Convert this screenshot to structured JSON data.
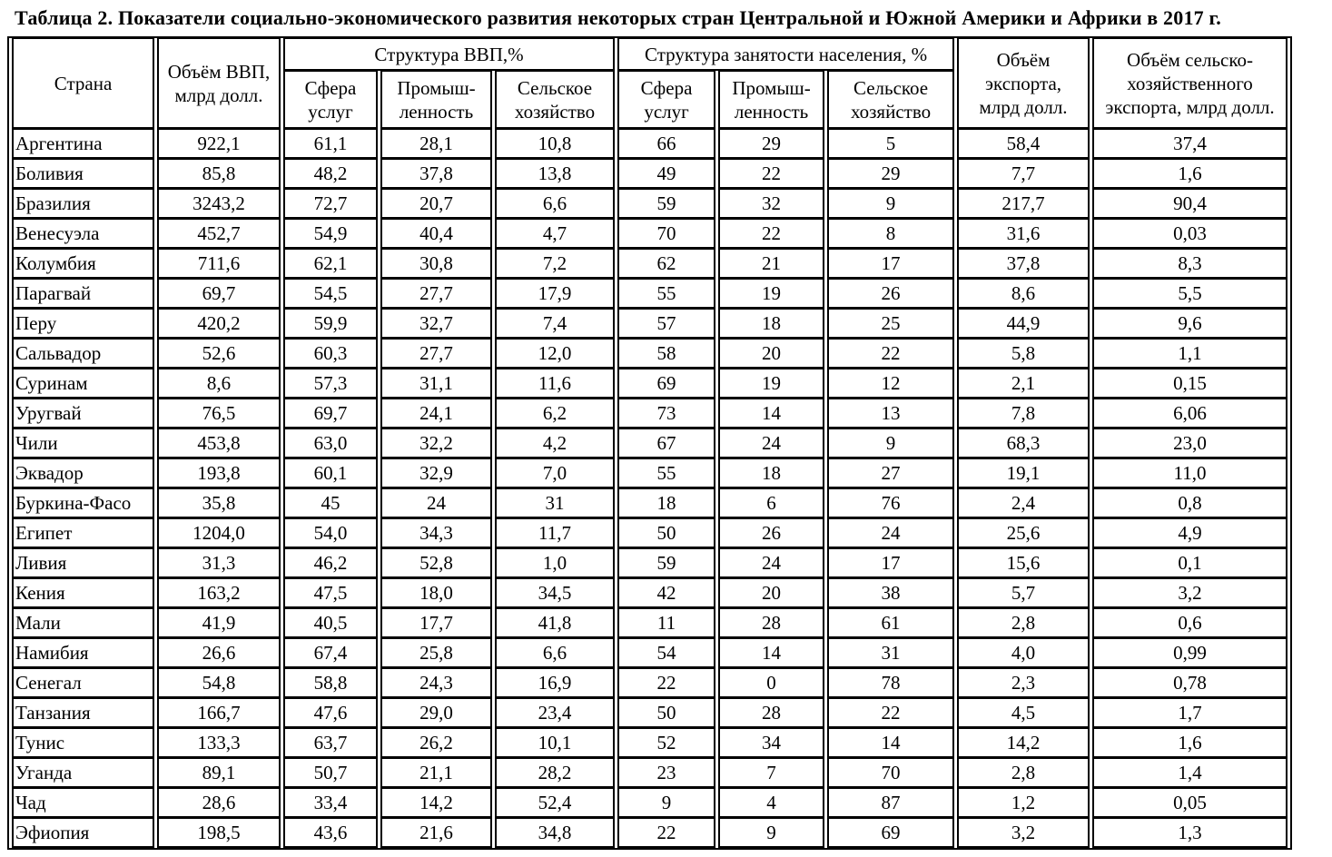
{
  "title": "Таблица 2. Показатели социально-экономического развития некоторых стран Центральной и Южной Америки и Африки в 2017 г.",
  "colors": {
    "text": "#000000",
    "background": "#ffffff",
    "border": "#000000"
  },
  "table": {
    "headers": {
      "country": "Страна",
      "gdp": "Объём ВВП,\nмлрд долл.",
      "gdp_structure_group": "Структура ВВП,%",
      "employment_structure_group": "Структура занятости населения, %",
      "sub_services": "Сфера\nуслуг",
      "sub_industry": "Промыш-\nленность",
      "sub_agriculture": "Сельское\nхозяйство",
      "export": "Объём\nэкспорта,\nмлрд долл.",
      "agri_export": "Объём сельско-\nхозяйственного\nэкспорта, млрд долл."
    },
    "columns_meaning": [
      "country",
      "gdp_bln_usd",
      "gdp_services_pct",
      "gdp_industry_pct",
      "gdp_agriculture_pct",
      "employment_services_pct",
      "employment_industry_pct",
      "employment_agriculture_pct",
      "export_bln_usd",
      "agricultural_export_bln_usd"
    ],
    "rows": [
      [
        "Аргентина",
        "922,1",
        "61,1",
        "28,1",
        "10,8",
        "66",
        "29",
        "5",
        "58,4",
        "37,4"
      ],
      [
        "Боливия",
        "85,8",
        "48,2",
        "37,8",
        "13,8",
        "49",
        "22",
        "29",
        "7,7",
        "1,6"
      ],
      [
        "Бразилия",
        "3243,2",
        "72,7",
        "20,7",
        "6,6",
        "59",
        "32",
        "9",
        "217,7",
        "90,4"
      ],
      [
        "Венесуэла",
        "452,7",
        "54,9",
        "40,4",
        "4,7",
        "70",
        "22",
        "8",
        "31,6",
        "0,03"
      ],
      [
        "Колумбия",
        "711,6",
        "62,1",
        "30,8",
        "7,2",
        "62",
        "21",
        "17",
        "37,8",
        "8,3"
      ],
      [
        "Парагвай",
        "69,7",
        "54,5",
        "27,7",
        "17,9",
        "55",
        "19",
        "26",
        "8,6",
        "5,5"
      ],
      [
        "Перу",
        "420,2",
        "59,9",
        "32,7",
        "7,4",
        "57",
        "18",
        "25",
        "44,9",
        "9,6"
      ],
      [
        "Сальвадор",
        "52,6",
        "60,3",
        "27,7",
        "12,0",
        "58",
        "20",
        "22",
        "5,8",
        "1,1"
      ],
      [
        "Суринам",
        "8,6",
        "57,3",
        "31,1",
        "11,6",
        "69",
        "19",
        "12",
        "2,1",
        "0,15"
      ],
      [
        "Уругвай",
        "76,5",
        "69,7",
        "24,1",
        "6,2",
        "73",
        "14",
        "13",
        "7,8",
        "6,06"
      ],
      [
        "Чили",
        "453,8",
        "63,0",
        "32,2",
        "4,2",
        "67",
        "24",
        "9",
        "68,3",
        "23,0"
      ],
      [
        "Эквадор",
        "193,8",
        "60,1",
        "32,9",
        "7,0",
        "55",
        "18",
        "27",
        "19,1",
        "11,0"
      ],
      [
        "Буркина-Фасо",
        "35,8",
        "45",
        "24",
        "31",
        "18",
        "6",
        "76",
        "2,4",
        "0,8"
      ],
      [
        "Египет",
        "1204,0",
        "54,0",
        "34,3",
        "11,7",
        "50",
        "26",
        "24",
        "25,6",
        "4,9"
      ],
      [
        "Ливия",
        "31,3",
        "46,2",
        "52,8",
        "1,0",
        "59",
        "24",
        "17",
        "15,6",
        "0,1"
      ],
      [
        "Кения",
        "163,2",
        "47,5",
        "18,0",
        "34,5",
        "42",
        "20",
        "38",
        "5,7",
        "3,2"
      ],
      [
        "Мали",
        "41,9",
        "40,5",
        "17,7",
        "41,8",
        "11",
        "28",
        "61",
        "2,8",
        "0,6"
      ],
      [
        "Намибия",
        "26,6",
        "67,4",
        "25,8",
        "6,6",
        "54",
        "14",
        "31",
        "4,0",
        "0,99"
      ],
      [
        "Сенегал",
        "54,8",
        "58,8",
        "24,3",
        "16,9",
        "22",
        "0",
        "78",
        "2,3",
        "0,78"
      ],
      [
        "Танзания",
        "166,7",
        "47,6",
        "29,0",
        "23,4",
        "50",
        "28",
        "22",
        "4,5",
        "1,7"
      ],
      [
        "Тунис",
        "133,3",
        "63,7",
        "26,2",
        "10,1",
        "52",
        "34",
        "14",
        "14,2",
        "1,6"
      ],
      [
        "Уганда",
        "89,1",
        "50,7",
        "21,1",
        "28,2",
        "23",
        "7",
        "70",
        "2,8",
        "1,4"
      ],
      [
        "Чад",
        "28,6",
        "33,4",
        "14,2",
        "52,4",
        "9",
        "4",
        "87",
        "1,2",
        "0,05"
      ],
      [
        "Эфиопия",
        "198,5",
        "43,6",
        "21,6",
        "34,8",
        "22",
        "9",
        "69",
        "3,2",
        "1,3"
      ]
    ]
  }
}
